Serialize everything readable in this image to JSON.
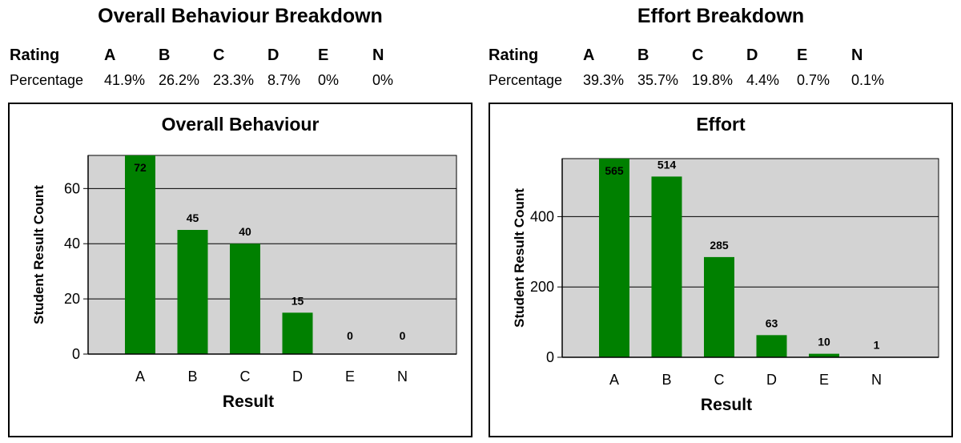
{
  "left": {
    "heading": "Overall Behaviour Breakdown",
    "table": {
      "row_labels": [
        "Rating",
        "Percentage"
      ],
      "ratings": [
        "A",
        "B",
        "C",
        "D",
        "E",
        "N"
      ],
      "percentages": [
        "41.9%",
        "26.2%",
        "23.3%",
        "8.7%",
        "0%",
        "0%"
      ]
    }
  },
  "right": {
    "heading": "Effort Breakdown",
    "table": {
      "row_labels": [
        "Rating",
        "Percentage"
      ],
      "ratings": [
        "A",
        "B",
        "C",
        "D",
        "E",
        "N"
      ],
      "percentages": [
        "39.3%",
        "35.7%",
        "19.8%",
        "4.4%",
        "0.7%",
        "0.1%"
      ]
    }
  },
  "chart_data": [
    {
      "type": "bar",
      "title": "Overall Behaviour",
      "xlabel": "Result",
      "ylabel": "Student Result Count",
      "categories": [
        "A",
        "B",
        "C",
        "D",
        "E",
        "N"
      ],
      "values": [
        72,
        45,
        40,
        15,
        0,
        0
      ],
      "data_labels": [
        "72",
        "45",
        "40",
        "15",
        "0",
        "0"
      ],
      "yticks": [
        0,
        20,
        40,
        60
      ],
      "ylim": [
        0,
        72
      ],
      "grid": true,
      "bar_color": "#008000",
      "plot_background": "#d3d3d3"
    },
    {
      "type": "bar",
      "title": "Effort",
      "xlabel": "Result",
      "ylabel": "Student Result Count",
      "categories": [
        "A",
        "B",
        "C",
        "D",
        "E",
        "N"
      ],
      "values": [
        565,
        514,
        285,
        63,
        10,
        1
      ],
      "data_labels": [
        "565",
        "514",
        "285",
        "63",
        "10",
        "1"
      ],
      "yticks": [
        0,
        200,
        400
      ],
      "ylim": [
        0,
        565
      ],
      "grid": true,
      "bar_color": "#008000",
      "plot_background": "#d3d3d3"
    }
  ]
}
